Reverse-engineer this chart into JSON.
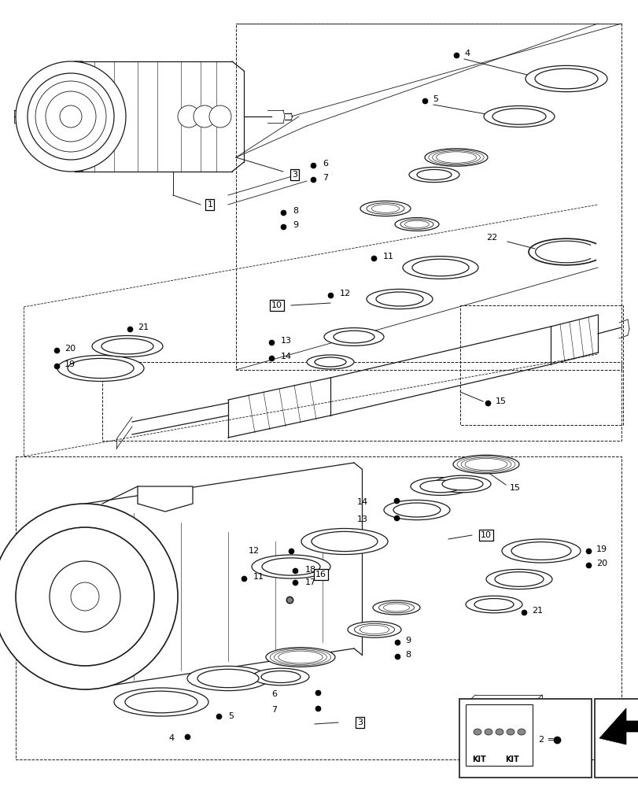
{
  "bg_color": "#ffffff",
  "line_color": "#1a1a1a",
  "fig_width": 8.12,
  "fig_height": 10.0,
  "dpi": 100
}
